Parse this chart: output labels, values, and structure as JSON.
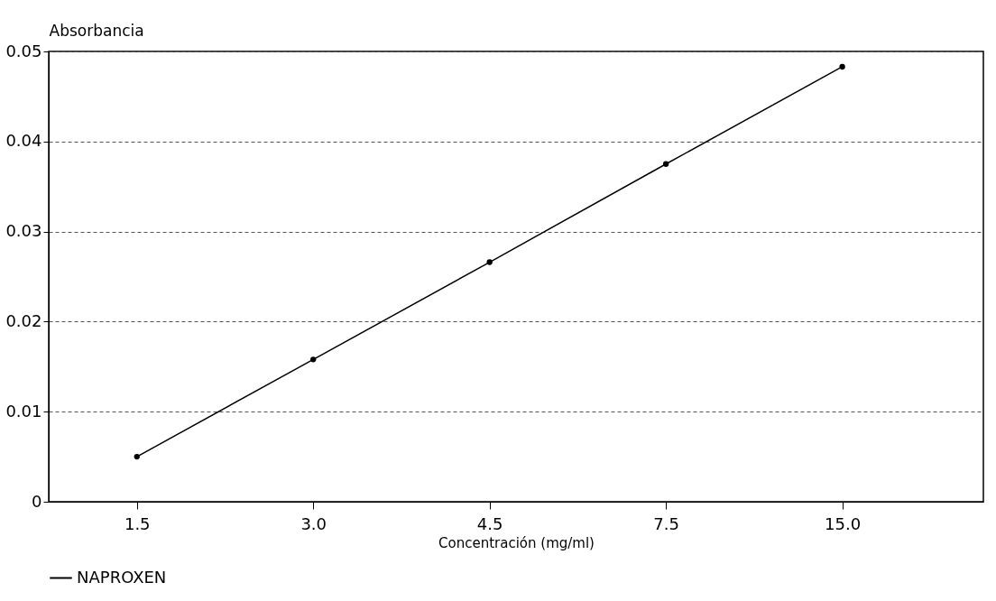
{
  "chart_data": {
    "type": "line",
    "xlabel": "Concentración (mg/ml)",
    "ylabel": "Absorbancia",
    "categories": [
      "1.5",
      "3.0",
      "4.5",
      "7.5",
      "15.0"
    ],
    "series": [
      {
        "name": "NAPROXEN",
        "color": "#000000",
        "values": [
          0.005,
          0.0158,
          0.0266,
          0.0375,
          0.0483
        ]
      }
    ],
    "ylim": [
      0,
      0.05
    ],
    "yticks": [
      {
        "value": 0,
        "label": "0"
      },
      0.01,
      0.02,
      0.03,
      0.04,
      0.05
    ],
    "grid": "y",
    "legend": "bottom",
    "marker": "circle",
    "line_style": "solid"
  }
}
